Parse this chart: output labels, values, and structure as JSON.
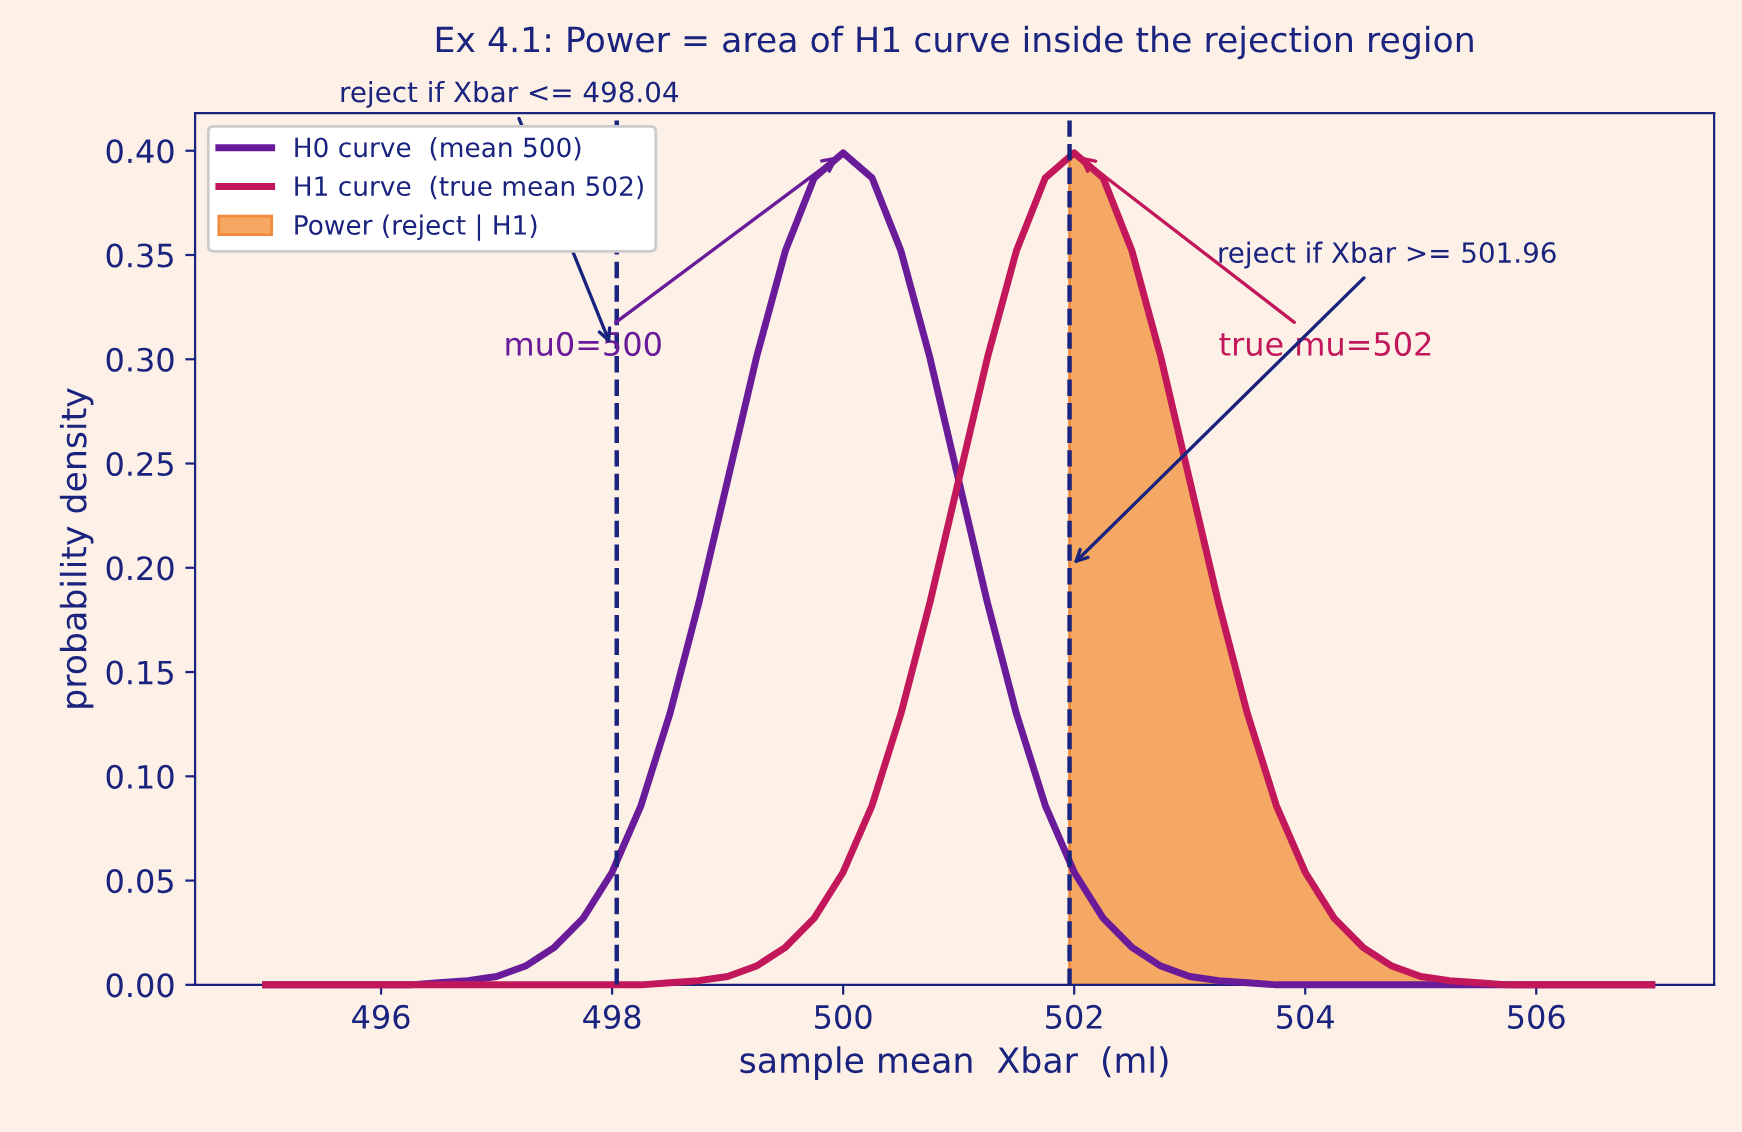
{
  "chart_data": {
    "type": "line",
    "title": "Ex 4.1: Power = area of H1 curve inside the rejection region",
    "xlabel": "sample mean  Xbar  (ml)",
    "ylabel": "probability density",
    "xlim": [
      494.39,
      507.54
    ],
    "ylim": [
      0,
      0.418
    ],
    "xticks": [
      496,
      498,
      500,
      502,
      504,
      506
    ],
    "yticks": [
      {
        "value": 0,
        "label": "0.00"
      },
      {
        "value": 0.05,
        "label": "0.05"
      },
      {
        "value": 0.1,
        "label": "0.10"
      },
      {
        "value": 0.15,
        "label": "0.15"
      },
      {
        "value": 0.2,
        "label": "0.20"
      },
      {
        "value": 0.25,
        "label": "0.25"
      },
      {
        "value": 0.3,
        "label": "0.30"
      },
      {
        "value": 0.35,
        "label": "0.35"
      },
      {
        "value": 0.4,
        "label": "0.40"
      }
    ],
    "series": [
      {
        "name": "H0 curve  (mean 500)",
        "color": "#6a1b9a",
        "x": [
          495,
          495.25,
          495.5,
          495.75,
          496,
          496.25,
          496.5,
          496.75,
          497,
          497.25,
          497.5,
          497.75,
          498,
          498.25,
          498.5,
          498.75,
          499,
          499.25,
          499.5,
          499.75,
          500,
          500.25,
          500.5,
          500.75,
          501,
          501.25,
          501.5,
          501.75,
          502,
          502.25,
          502.5,
          502.75,
          503,
          503.25,
          503.5,
          503.75,
          504,
          504.25,
          504.5,
          504.75,
          505,
          505.25,
          505.5,
          505.75,
          506,
          506.25,
          506.5,
          506.75,
          507
        ],
        "values": [
          0,
          0,
          0,
          0,
          0,
          0,
          0.001,
          0.002,
          0.004,
          0.009,
          0.018,
          0.032,
          0.054,
          0.086,
          0.13,
          0.183,
          0.242,
          0.301,
          0.352,
          0.387,
          0.399,
          0.387,
          0.352,
          0.301,
          0.242,
          0.183,
          0.13,
          0.086,
          0.054,
          0.032,
          0.018,
          0.009,
          0.004,
          0.002,
          0.001,
          0,
          0,
          0,
          0,
          0,
          0,
          0,
          0,
          0,
          0,
          0,
          0,
          0,
          0
        ]
      },
      {
        "name": "H1 curve  (true mean 502)",
        "color": "#c2185b",
        "x": [
          495,
          495.25,
          495.5,
          495.75,
          496,
          496.25,
          496.5,
          496.75,
          497,
          497.25,
          497.5,
          497.75,
          498,
          498.25,
          498.5,
          498.75,
          499,
          499.25,
          499.5,
          499.75,
          500,
          500.25,
          500.5,
          500.75,
          501,
          501.25,
          501.5,
          501.75,
          502,
          502.25,
          502.5,
          502.75,
          503,
          503.25,
          503.5,
          503.75,
          504,
          504.25,
          504.5,
          504.75,
          505,
          505.25,
          505.5,
          505.75,
          506,
          506.25,
          506.5,
          506.75,
          507
        ],
        "values": [
          0,
          0,
          0,
          0,
          0,
          0,
          0,
          0,
          0,
          0,
          0,
          0,
          0,
          0,
          0.001,
          0.002,
          0.004,
          0.009,
          0.018,
          0.032,
          0.054,
          0.086,
          0.13,
          0.183,
          0.242,
          0.301,
          0.352,
          0.387,
          0.399,
          0.387,
          0.352,
          0.301,
          0.242,
          0.183,
          0.13,
          0.086,
          0.054,
          0.032,
          0.018,
          0.009,
          0.004,
          0.002,
          0.001,
          0,
          0,
          0,
          0,
          0,
          0
        ]
      },
      {
        "name": "Power (reject | H1)",
        "type": "area",
        "color": "#f5a864",
        "x": [
          501.96,
          502.25,
          502.5,
          502.75,
          503,
          503.25,
          503.5,
          503.75,
          504,
          504.25,
          504.5,
          504.75,
          505,
          505.25,
          505.5,
          505.75,
          506,
          506.25,
          506.5,
          506.75,
          507
        ],
        "values": [
          0.399,
          0.387,
          0.352,
          0.301,
          0.242,
          0.183,
          0.13,
          0.086,
          0.054,
          0.032,
          0.018,
          0.009,
          0.004,
          0.002,
          0.001,
          0,
          0,
          0,
          0,
          0,
          0
        ]
      }
    ],
    "ref_lines": [
      {
        "axis": "x",
        "value": 498.04,
        "color": "#1a237e",
        "line_style": "dashed"
      },
      {
        "axis": "x",
        "value": 501.96,
        "color": "#1a237e",
        "line_style": "dashed"
      }
    ],
    "annotations": [
      {
        "text": "mu0=500",
        "x": 500,
        "y": 0.399
      },
      {
        "text": "true mu=502",
        "x": 502,
        "y": 0.399
      },
      {
        "text": "reject if Xbar <= 498.04",
        "x": 498.0,
        "y": 0.305
      },
      {
        "text": "reject if Xbar >= 501.96",
        "x": 501.96,
        "y": 0.2
      }
    ],
    "legend": "top left",
    "grid": false,
    "marker": "none",
    "line_style": "solid"
  }
}
